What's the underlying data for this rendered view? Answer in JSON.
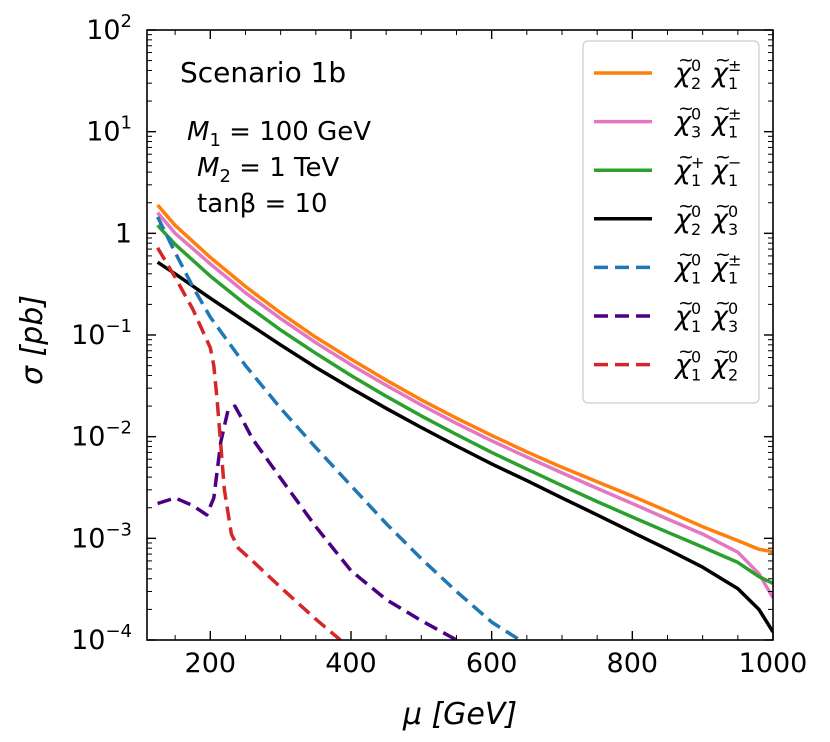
{
  "chart_data": {
    "type": "line",
    "title": "",
    "xlabel": "μ [GeV]",
    "ylabel": "σ [pb]",
    "xscale": "linear",
    "yscale": "log",
    "xlim": [
      110,
      1000
    ],
    "ylim": [
      0.0001,
      100
    ],
    "x_ticks": [
      200,
      400,
      600,
      800,
      1000
    ],
    "x_tick_labels": [
      "200",
      "400",
      "600",
      "800",
      "1000"
    ],
    "y_ticks": [
      0.0001,
      0.001,
      0.01,
      0.1,
      1,
      10,
      100
    ],
    "y_tick_labels": [
      {
        "base": "10",
        "exp": "−4"
      },
      {
        "base": "10",
        "exp": "−3"
      },
      {
        "base": "10",
        "exp": "−2"
      },
      {
        "base": "10",
        "exp": "−1"
      },
      {
        "base": "1",
        "exp": ""
      },
      {
        "base": "10",
        "exp": "1"
      },
      {
        "base": "10",
        "exp": "2"
      }
    ],
    "annotations": {
      "scenario": "Scenario 1b",
      "params": [
        {
          "sym": "M",
          "sub": "1",
          "rest": " = 100 GeV"
        },
        {
          "sym": "M",
          "sub": "2",
          "rest": " = 1 TeV"
        },
        {
          "sym": "",
          "sub": "",
          "rest": "tanβ = 10"
        }
      ]
    },
    "legend_position": "top-right",
    "series": [
      {
        "name": "χ̃⁰₂χ̃±₁",
        "a": "2",
        "a_sup": "0",
        "b": "1",
        "b_sup": "±",
        "color": "#ff7f0e",
        "dash": "solid",
        "points": [
          [
            125,
            1.9
          ],
          [
            150,
            1.2
          ],
          [
            200,
            0.58
          ],
          [
            250,
            0.3
          ],
          [
            300,
            0.165
          ],
          [
            350,
            0.095
          ],
          [
            400,
            0.058
          ],
          [
            450,
            0.036
          ],
          [
            500,
            0.023
          ],
          [
            550,
            0.0152
          ],
          [
            600,
            0.0103
          ],
          [
            650,
            0.0071
          ],
          [
            700,
            0.005
          ],
          [
            750,
            0.0036
          ],
          [
            800,
            0.0026
          ],
          [
            850,
            0.00185
          ],
          [
            900,
            0.0013
          ],
          [
            950,
            0.00095
          ],
          [
            980,
            0.00078
          ],
          [
            1000,
            0.00074
          ]
        ]
      },
      {
        "name": "χ̃⁰₃χ̃±₁",
        "a": "3",
        "a_sup": "0",
        "b": "1",
        "b_sup": "±",
        "color": "#e377c2",
        "dash": "solid",
        "points": [
          [
            125,
            1.6
          ],
          [
            150,
            1.0
          ],
          [
            200,
            0.5
          ],
          [
            250,
            0.26
          ],
          [
            300,
            0.145
          ],
          [
            350,
            0.084
          ],
          [
            400,
            0.051
          ],
          [
            450,
            0.032
          ],
          [
            500,
            0.0205
          ],
          [
            550,
            0.0135
          ],
          [
            600,
            0.0091
          ],
          [
            650,
            0.0063
          ],
          [
            700,
            0.0044
          ],
          [
            750,
            0.0031
          ],
          [
            800,
            0.0022
          ],
          [
            850,
            0.00155
          ],
          [
            900,
            0.0011
          ],
          [
            950,
            0.00073
          ],
          [
            980,
            0.00045
          ],
          [
            1000,
            0.00026
          ]
        ]
      },
      {
        "name": "χ̃⁺₁χ̃⁻₁",
        "a": "1",
        "a_sup": "+",
        "b": "1",
        "b_sup": "−",
        "color": "#2ca02c",
        "dash": "solid",
        "points": [
          [
            125,
            1.2
          ],
          [
            150,
            0.78
          ],
          [
            200,
            0.38
          ],
          [
            250,
            0.2
          ],
          [
            300,
            0.112
          ],
          [
            350,
            0.066
          ],
          [
            400,
            0.04
          ],
          [
            450,
            0.025
          ],
          [
            500,
            0.016
          ],
          [
            550,
            0.0105
          ],
          [
            600,
            0.007
          ],
          [
            650,
            0.0048
          ],
          [
            700,
            0.0033
          ],
          [
            750,
            0.0023
          ],
          [
            800,
            0.00162
          ],
          [
            850,
            0.00115
          ],
          [
            900,
            0.00082
          ],
          [
            950,
            0.00058
          ],
          [
            980,
            0.00042
          ],
          [
            1000,
            0.00036
          ]
        ]
      },
      {
        "name": "χ̃⁰₂χ̃⁰₃",
        "a": "2",
        "a_sup": "0",
        "b": "3",
        "b_sup": "0",
        "color": "#000000",
        "dash": "solid",
        "points": [
          [
            125,
            0.52
          ],
          [
            150,
            0.4
          ],
          [
            200,
            0.23
          ],
          [
            250,
            0.135
          ],
          [
            300,
            0.08
          ],
          [
            350,
            0.048
          ],
          [
            400,
            0.03
          ],
          [
            450,
            0.019
          ],
          [
            500,
            0.0123
          ],
          [
            550,
            0.0081
          ],
          [
            600,
            0.0054
          ],
          [
            650,
            0.0037
          ],
          [
            700,
            0.0025
          ],
          [
            750,
            0.0017
          ],
          [
            800,
            0.00115
          ],
          [
            850,
            0.00078
          ],
          [
            900,
            0.00052
          ],
          [
            950,
            0.00032
          ],
          [
            980,
            0.0002
          ],
          [
            1000,
            0.00012
          ]
        ]
      },
      {
        "name": "χ̃⁰₁χ̃±₁",
        "a": "1",
        "a_sup": "0",
        "b": "1",
        "b_sup": "±",
        "color": "#1f77b4",
        "dash": "dashed",
        "points": [
          [
            125,
            1.45
          ],
          [
            150,
            0.65
          ],
          [
            175,
            0.3
          ],
          [
            200,
            0.15
          ],
          [
            250,
            0.05
          ],
          [
            300,
            0.019
          ],
          [
            350,
            0.0078
          ],
          [
            400,
            0.0033
          ],
          [
            450,
            0.0014
          ],
          [
            500,
            0.00063
          ],
          [
            550,
            0.0003
          ],
          [
            600,
            0.00015
          ],
          [
            640,
            0.0001
          ]
        ]
      },
      {
        "name": "χ̃⁰₁χ̃⁰₃",
        "a": "1",
        "a_sup": "0",
        "b": "3",
        "b_sup": "0",
        "color": "#4b0082",
        "dash": "dashed",
        "points": [
          [
            125,
            0.0022
          ],
          [
            150,
            0.0025
          ],
          [
            175,
            0.0021
          ],
          [
            195,
            0.0017
          ],
          [
            205,
            0.0025
          ],
          [
            215,
            0.009
          ],
          [
            225,
            0.018
          ],
          [
            235,
            0.02
          ],
          [
            245,
            0.015
          ],
          [
            260,
            0.0095
          ],
          [
            300,
            0.0039
          ],
          [
            350,
            0.0013
          ],
          [
            400,
            0.00048
          ],
          [
            450,
            0.00025
          ],
          [
            500,
            0.000155
          ],
          [
            550,
            0.0001
          ]
        ]
      },
      {
        "name": "χ̃⁰₁χ̃⁰₂",
        "a": "1",
        "a_sup": "0",
        "b": "2",
        "b_sup": "0",
        "color": "#d62728",
        "dash": "dashed",
        "points": [
          [
            125,
            0.72
          ],
          [
            150,
            0.37
          ],
          [
            175,
            0.18
          ],
          [
            200,
            0.075
          ],
          [
            205,
            0.05
          ],
          [
            210,
            0.022
          ],
          [
            215,
            0.008
          ],
          [
            220,
            0.003
          ],
          [
            230,
            0.0011
          ],
          [
            240,
            0.0008
          ],
          [
            260,
            0.0006
          ],
          [
            300,
            0.00033
          ],
          [
            350,
            0.00016
          ],
          [
            385,
            0.0001
          ]
        ]
      }
    ]
  }
}
